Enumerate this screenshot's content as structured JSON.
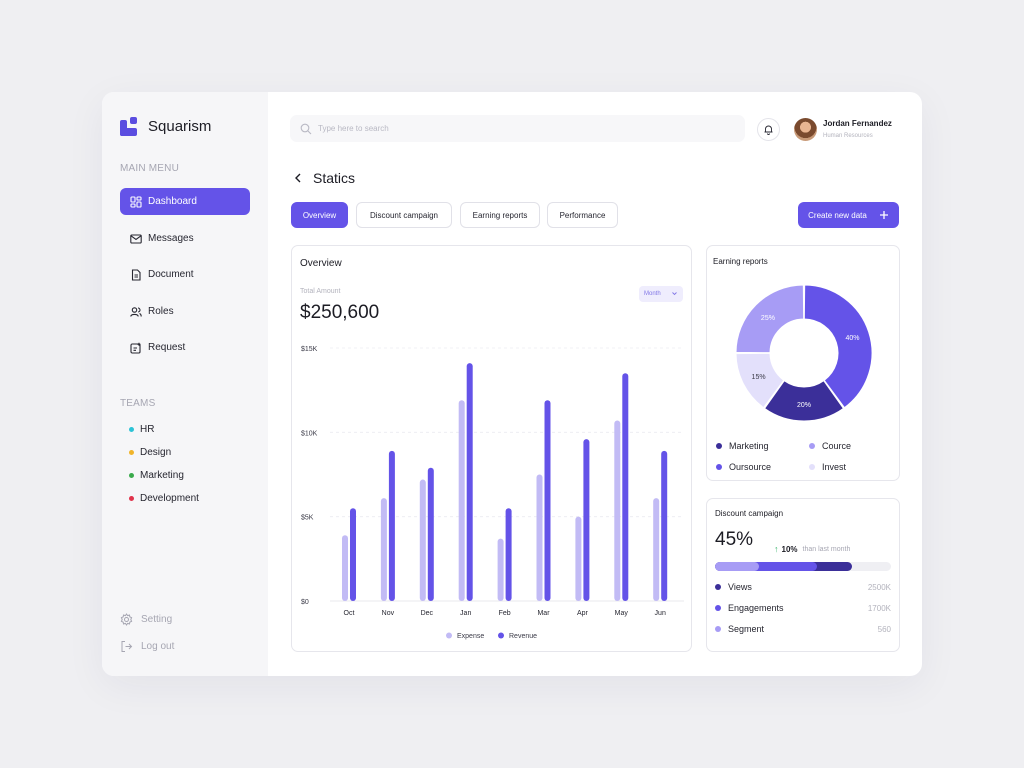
{
  "app": {
    "name": "Squarism"
  },
  "sidebar": {
    "main_menu_label": "MAIN MENU",
    "menu": [
      {
        "label": "Dashboard",
        "icon": "dashboard-icon"
      },
      {
        "label": "Messages",
        "icon": "mail-icon"
      },
      {
        "label": "Document",
        "icon": "document-icon"
      },
      {
        "label": "Roles",
        "icon": "users-icon"
      },
      {
        "label": "Request",
        "icon": "request-icon"
      }
    ],
    "teams_label": "TEAMS",
    "teams": [
      {
        "label": "HR",
        "color": "#2cc3d6"
      },
      {
        "label": "Design",
        "color": "#f0b42a"
      },
      {
        "label": "Marketing",
        "color": "#3aaa4c"
      },
      {
        "label": "Development",
        "color": "#e0334b"
      }
    ],
    "setting_label": "Setting",
    "logout_label": "Log out"
  },
  "header": {
    "search_placeholder": "Type here to search",
    "user_name": "Jordan Fernandez",
    "user_role": "Human Resources"
  },
  "page": {
    "title": "Statics",
    "tabs": [
      "Overview",
      "Discount campaign",
      "Earning reports",
      "Performance"
    ],
    "create_label": "Create new data"
  },
  "overview": {
    "title": "Overview",
    "subtitle": "Total Amount",
    "amount": "$250,600",
    "period": "Month",
    "legend_expense": "Expense",
    "legend_revenue": "Revenue"
  },
  "earning": {
    "title": "Earning reports",
    "legend": [
      {
        "label": "Marketing",
        "color": "#3b2f99"
      },
      {
        "label": "Cource",
        "color": "#a79cf5"
      },
      {
        "label": "Oursource",
        "color": "#6453e8"
      },
      {
        "label": "Invest",
        "color": "#e3e0fb"
      }
    ]
  },
  "discount": {
    "title": "Discount campaign",
    "percent": "45%",
    "change": "10%",
    "change_note": "than last month",
    "progress": [
      {
        "label": "Segment",
        "fraction": 0.25,
        "color": "#a79cf5"
      },
      {
        "label": "Engagements",
        "fraction": 0.33,
        "color": "#6453e8"
      },
      {
        "label": "Views",
        "fraction": 0.2,
        "color": "#3b2f99"
      }
    ],
    "stats": [
      {
        "label": "Views",
        "value": "2500K",
        "color": "#3b2f99"
      },
      {
        "label": "Engagements",
        "value": "1700K",
        "color": "#6453e8"
      },
      {
        "label": "Segment",
        "value": "560",
        "color": "#a79cf5"
      }
    ]
  },
  "chart_data": [
    {
      "type": "bar",
      "title": "Overview",
      "categories": [
        "Oct",
        "Nov",
        "Dec",
        "Jan",
        "Feb",
        "Mar",
        "Apr",
        "May",
        "Jun"
      ],
      "y_ticks": [
        "$0",
        "$5K",
        "$10K",
        "$15K"
      ],
      "ylim": [
        0,
        15000
      ],
      "grid": true,
      "legend_position": "bottom",
      "series": [
        {
          "name": "Expense",
          "color": "#c2bbf5",
          "values": [
            3900,
            6100,
            7200,
            11900,
            3700,
            7500,
            5000,
            10700,
            6100
          ]
        },
        {
          "name": "Revenue",
          "color": "#6453e8",
          "values": [
            5500,
            8900,
            7900,
            14100,
            5500,
            11900,
            9600,
            13500,
            8900
          ]
        }
      ]
    },
    {
      "type": "pie",
      "title": "Earning reports",
      "slices": [
        {
          "label": "Oursource",
          "value": 40,
          "text": "40%",
          "color": "#6453e8"
        },
        {
          "label": "Marketing",
          "value": 20,
          "text": "20%",
          "color": "#3b2f99"
        },
        {
          "label": "Invest",
          "value": 15,
          "text": "15%",
          "color": "#e3e0fb"
        },
        {
          "label": "Cource",
          "value": 25,
          "text": "25%",
          "color": "#a79cf5"
        }
      ]
    }
  ]
}
